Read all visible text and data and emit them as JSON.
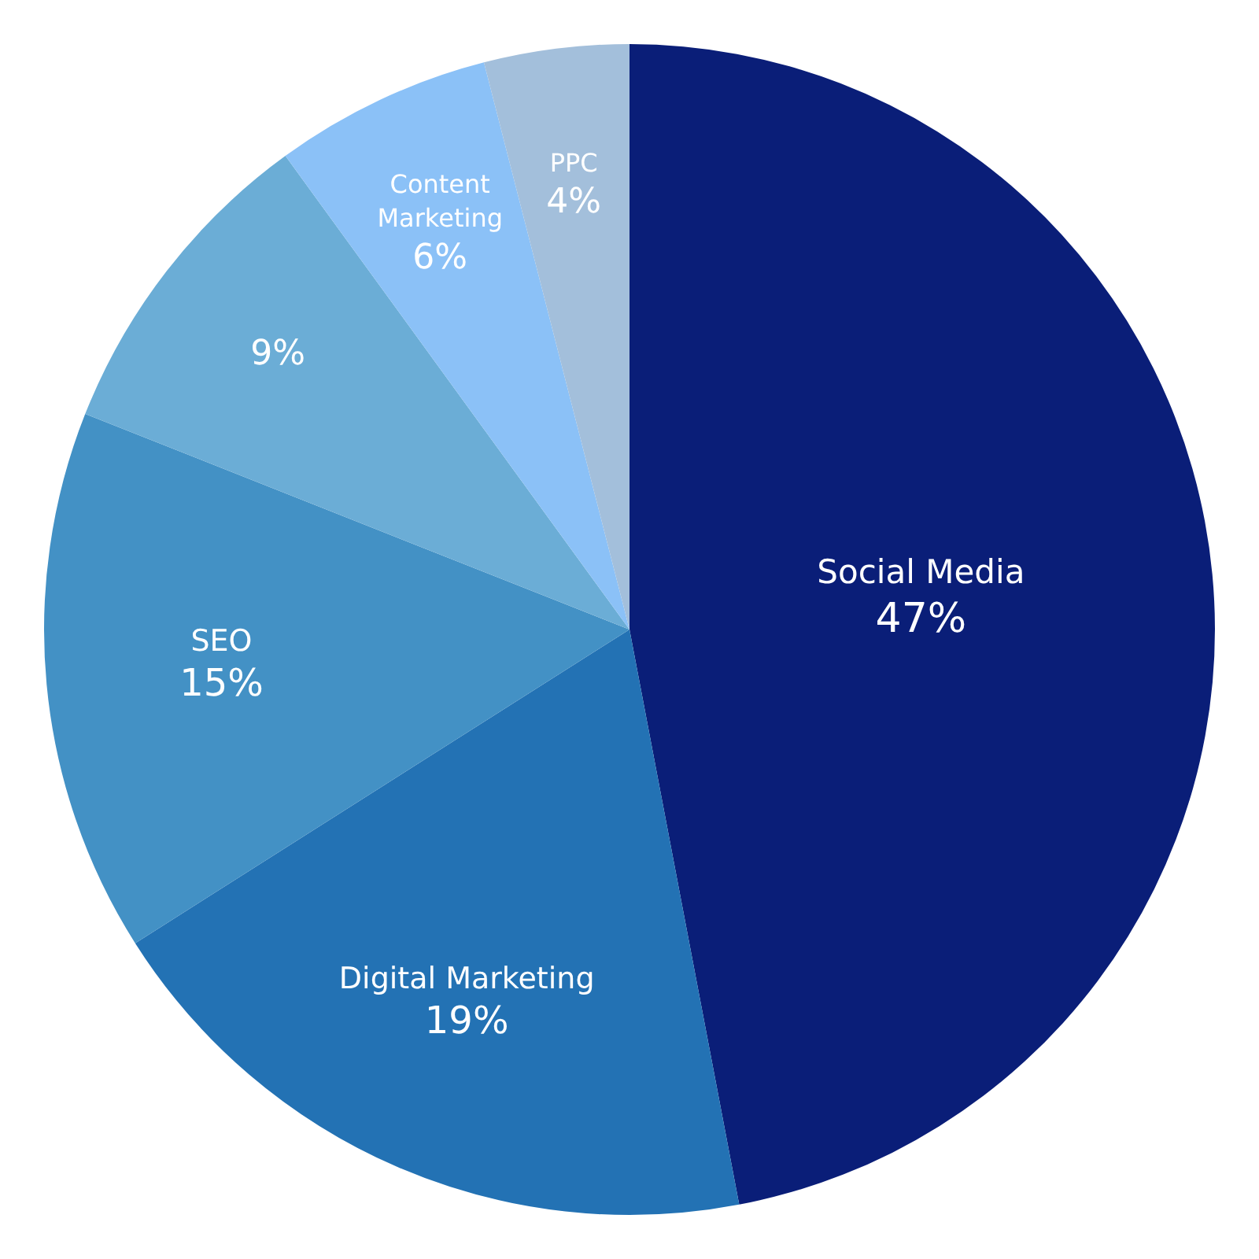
{
  "chart_data": {
    "type": "pie",
    "categories": [
      "Social Media",
      "Digital Marketing",
      "SEO",
      null,
      "Content Marketing",
      "PPC"
    ],
    "values": [
      47,
      19,
      15,
      9,
      6,
      4
    ],
    "colors": [
      "#0a1e78",
      "#2372b4",
      "#4391c5",
      "#6badd6",
      "#8bc1f7",
      "#a3bfdb"
    ],
    "value_labels": [
      "47%",
      "19%",
      "15%",
      "9%",
      "6%",
      "4%"
    ]
  }
}
